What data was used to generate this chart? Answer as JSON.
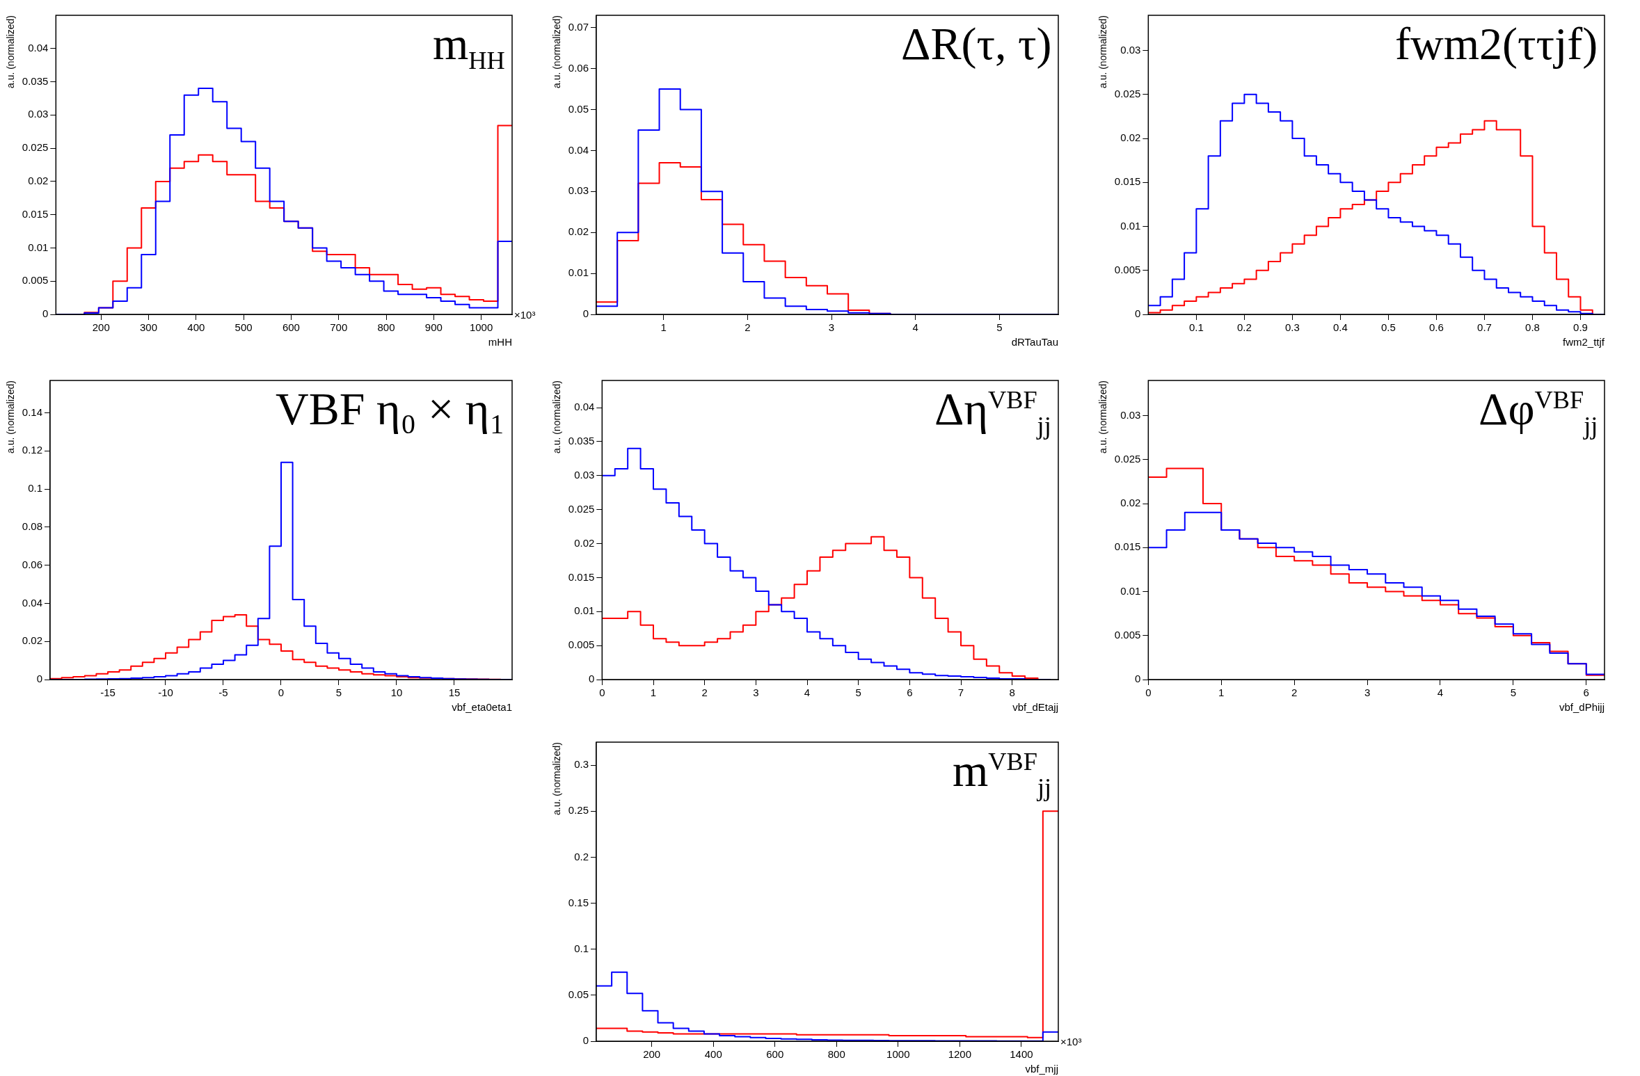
{
  "chart_data": [
    {
      "type": "histogram",
      "title": "m$_{HH}$",
      "xlabel": "mHH",
      "ylabel": "a.u. (normalized)",
      "annotations": [
        "×10³"
      ],
      "xlim": [
        105,
        1065
      ],
      "ylim": [
        0,
        0.045
      ],
      "xticks": [
        200,
        300,
        400,
        500,
        600,
        700,
        800,
        900,
        1000
      ],
      "yticks": [
        0,
        0.005,
        0.01,
        0.015,
        0.02,
        0.025,
        0.03,
        0.035,
        0.04
      ],
      "bins": [
        105,
        135,
        165,
        195,
        225,
        255,
        285,
        315,
        345,
        375,
        405,
        435,
        465,
        495,
        525,
        555,
        585,
        615,
        645,
        675,
        705,
        735,
        765,
        795,
        825,
        855,
        885,
        915,
        945,
        975,
        1005,
        1035,
        1065
      ],
      "series": [
        {
          "color": "#0000ff",
          "values": [
            0,
            0,
            0.0002,
            0.001,
            0.002,
            0.004,
            0.009,
            0.017,
            0.027,
            0.033,
            0.034,
            0.032,
            0.028,
            0.026,
            0.022,
            0.017,
            0.014,
            0.013,
            0.01,
            0.008,
            0.007,
            0.006,
            0.005,
            0.0035,
            0.003,
            0.003,
            0.0025,
            0.002,
            0.0015,
            0.001,
            0.001,
            0.011
          ]
        },
        {
          "color": "#ff0000",
          "values": [
            0,
            0,
            0.0003,
            0.001,
            0.005,
            0.01,
            0.016,
            0.02,
            0.022,
            0.023,
            0.024,
            0.023,
            0.021,
            0.021,
            0.017,
            0.016,
            0.014,
            0.013,
            0.0095,
            0.009,
            0.009,
            0.007,
            0.006,
            0.006,
            0.0045,
            0.0038,
            0.004,
            0.003,
            0.0027,
            0.0022,
            0.002,
            0.0284
          ]
        }
      ]
    },
    {
      "type": "histogram",
      "title": "ΔR(τ, τ)",
      "xlabel": "dRTauTau",
      "ylabel": "a.u. (normalized)",
      "xlim": [
        0.2,
        5.7
      ],
      "ylim": [
        0,
        0.073
      ],
      "xticks": [
        1,
        2,
        3,
        4,
        5
      ],
      "yticks": [
        0,
        0.01,
        0.02,
        0.03,
        0.04,
        0.05,
        0.06,
        0.07
      ],
      "bins": [
        0.2,
        0.45,
        0.7,
        0.95,
        1.2,
        1.45,
        1.7,
        1.95,
        2.2,
        2.45,
        2.7,
        2.95,
        3.2,
        3.45,
        3.7,
        3.95,
        4.2,
        4.45,
        4.7,
        4.95,
        5.2,
        5.45,
        5.7
      ],
      "series": [
        {
          "color": "#0000ff",
          "values": [
            0.002,
            0.02,
            0.045,
            0.055,
            0.05,
            0.03,
            0.015,
            0.008,
            0.004,
            0.002,
            0.0012,
            0.0008,
            0.0004,
            0.0002,
            0,
            0,
            0,
            0,
            0,
            0,
            0,
            0
          ]
        },
        {
          "color": "#ff0000",
          "values": [
            0.003,
            0.018,
            0.032,
            0.037,
            0.036,
            0.028,
            0.022,
            0.017,
            0.013,
            0.009,
            0.007,
            0.005,
            0.001,
            0.0002,
            0,
            0,
            0,
            0,
            0,
            0,
            0,
            0
          ]
        }
      ]
    },
    {
      "type": "histogram",
      "title": "fwm2(ττjf)",
      "xlabel": "fwm2_ttjf",
      "ylabel": "a.u. (normalized)",
      "xlim": [
        0,
        0.95
      ],
      "ylim": [
        0,
        0.034
      ],
      "xticks": [
        0.1,
        0.2,
        0.3,
        0.4,
        0.5,
        0.6,
        0.7,
        0.8,
        0.9
      ],
      "yticks": [
        0,
        0.005,
        0.01,
        0.015,
        0.02,
        0.025,
        0.03
      ],
      "bins": [
        0,
        0.025,
        0.05,
        0.075,
        0.1,
        0.125,
        0.15,
        0.175,
        0.2,
        0.225,
        0.25,
        0.275,
        0.3,
        0.325,
        0.35,
        0.375,
        0.4,
        0.425,
        0.45,
        0.475,
        0.5,
        0.525,
        0.55,
        0.575,
        0.6,
        0.625,
        0.65,
        0.675,
        0.7,
        0.725,
        0.75,
        0.775,
        0.8,
        0.825,
        0.85,
        0.875,
        0.9,
        0.925,
        0.95
      ],
      "series": [
        {
          "color": "#0000ff",
          "values": [
            0.001,
            0.002,
            0.004,
            0.007,
            0.012,
            0.018,
            0.022,
            0.024,
            0.025,
            0.024,
            0.023,
            0.022,
            0.02,
            0.018,
            0.017,
            0.016,
            0.015,
            0.014,
            0.013,
            0.012,
            0.011,
            0.0105,
            0.01,
            0.0095,
            0.009,
            0.008,
            0.0065,
            0.005,
            0.004,
            0.003,
            0.0025,
            0.002,
            0.0015,
            0.001,
            0.0005,
            0.0003,
            0.0001,
            0
          ]
        },
        {
          "color": "#ff0000",
          "values": [
            0.0002,
            0.0005,
            0.001,
            0.0015,
            0.002,
            0.0025,
            0.003,
            0.0035,
            0.004,
            0.005,
            0.006,
            0.007,
            0.008,
            0.009,
            0.01,
            0.011,
            0.012,
            0.0125,
            0.013,
            0.014,
            0.015,
            0.016,
            0.017,
            0.018,
            0.019,
            0.0195,
            0.0205,
            0.021,
            0.022,
            0.021,
            0.021,
            0.018,
            0.01,
            0.007,
            0.004,
            0.002,
            0.0005,
            0
          ]
        }
      ]
    },
    {
      "type": "histogram",
      "title": "VBF η₀ × η₁",
      "xlabel": "vbf_eta0eta1",
      "ylabel": "a.u. (normalized)",
      "xlim": [
        -20,
        20
      ],
      "ylim": [
        0,
        0.157
      ],
      "xticks": [
        -15,
        -10,
        -5,
        0,
        5,
        10,
        15
      ],
      "yticks": [
        0,
        0.02,
        0.04,
        0.06,
        0.08,
        0.1,
        0.12,
        0.14
      ],
      "bins": [
        -20,
        -19,
        -18,
        -17,
        -16,
        -15,
        -14,
        -13,
        -12,
        -11,
        -10,
        -9,
        -8,
        -7,
        -6,
        -5,
        -4,
        -3,
        -2,
        -1,
        0,
        1,
        2,
        3,
        4,
        5,
        6,
        7,
        8,
        9,
        10,
        11,
        12,
        13,
        14,
        15,
        16,
        17,
        18,
        19,
        20
      ],
      "series": [
        {
          "color": "#0000ff",
          "values": [
            0,
            0,
            0,
            0.0002,
            0.0003,
            0.0004,
            0.0005,
            0.0007,
            0.001,
            0.0015,
            0.002,
            0.003,
            0.004,
            0.006,
            0.008,
            0.01,
            0.013,
            0.018,
            0.032,
            0.07,
            0.114,
            0.042,
            0.028,
            0.019,
            0.014,
            0.011,
            0.008,
            0.006,
            0.004,
            0.003,
            0.002,
            0.0015,
            0.001,
            0.0007,
            0.0005,
            0.0003,
            0.0002,
            0.0001,
            0,
            0
          ]
        },
        {
          "color": "#ff0000",
          "values": [
            0.0005,
            0.001,
            0.0015,
            0.002,
            0.003,
            0.004,
            0.005,
            0.007,
            0.009,
            0.011,
            0.014,
            0.017,
            0.021,
            0.025,
            0.031,
            0.033,
            0.034,
            0.028,
            0.021,
            0.0185,
            0.015,
            0.0105,
            0.009,
            0.007,
            0.006,
            0.005,
            0.004,
            0.003,
            0.0025,
            0.002,
            0.0015,
            0.001,
            0.0008,
            0.0006,
            0.0005,
            0.0004,
            0.0003,
            0.0002,
            0.0001,
            0
          ]
        }
      ]
    },
    {
      "type": "histogram",
      "title": "Δη$^{VBF}$$_{jj}$",
      "xlabel": "vbf_dEtajj",
      "ylabel": "a.u. (normalized)",
      "xlim": [
        0,
        8.9
      ],
      "ylim": [
        0,
        0.044
      ],
      "xticks": [
        0,
        1,
        2,
        3,
        4,
        5,
        6,
        7,
        8
      ],
      "yticks": [
        0,
        0.005,
        0.01,
        0.015,
        0.02,
        0.025,
        0.03,
        0.035,
        0.04
      ],
      "bins": [
        0,
        0.25,
        0.5,
        0.75,
        1,
        1.25,
        1.5,
        1.75,
        2,
        2.25,
        2.5,
        2.75,
        3,
        3.25,
        3.5,
        3.75,
        4,
        4.25,
        4.5,
        4.75,
        5,
        5.25,
        5.5,
        5.75,
        6,
        6.25,
        6.5,
        6.75,
        7,
        7.25,
        7.5,
        7.75,
        8,
        8.25,
        8.5,
        8.75
      ],
      "series": [
        {
          "color": "#0000ff",
          "values": [
            0.03,
            0.031,
            0.034,
            0.031,
            0.028,
            0.026,
            0.024,
            0.022,
            0.02,
            0.018,
            0.016,
            0.015,
            0.013,
            0.011,
            0.01,
            0.009,
            0.007,
            0.006,
            0.005,
            0.004,
            0.003,
            0.0025,
            0.002,
            0.0015,
            0.001,
            0.0008,
            0.0006,
            0.0005,
            0.0004,
            0.0003,
            0.0002,
            0.0001,
            0.0001,
            0,
            0
          ]
        },
        {
          "color": "#ff0000",
          "values": [
            0.009,
            0.009,
            0.01,
            0.008,
            0.006,
            0.0055,
            0.005,
            0.005,
            0.0055,
            0.006,
            0.007,
            0.008,
            0.01,
            0.011,
            0.012,
            0.014,
            0.016,
            0.018,
            0.019,
            0.02,
            0.02,
            0.021,
            0.019,
            0.018,
            0.015,
            0.012,
            0.009,
            0.007,
            0.005,
            0.003,
            0.002,
            0.001,
            0.0005,
            0.0002,
            0
          ]
        }
      ]
    },
    {
      "type": "histogram",
      "title": "Δφ$^{VBF}$$_{jj}$",
      "xlabel": "vbf_dPhijj",
      "ylabel": "a.u. (normalized)",
      "xlim": [
        0,
        6.25
      ],
      "ylim": [
        0,
        0.034
      ],
      "xticks": [
        0,
        1,
        2,
        3,
        4,
        5,
        6
      ],
      "yticks": [
        0,
        0.005,
        0.01,
        0.015,
        0.02,
        0.025,
        0.03
      ],
      "bins": [
        0,
        0.25,
        0.5,
        0.75,
        1,
        1.25,
        1.5,
        1.75,
        2,
        2.25,
        2.5,
        2.75,
        3,
        3.25,
        3.5,
        3.75,
        4,
        4.25,
        4.5,
        4.75,
        5,
        5.25,
        5.5,
        5.75,
        6,
        6.25
      ],
      "series": [
        {
          "color": "#0000ff",
          "values": [
            0.015,
            0.017,
            0.019,
            0.019,
            0.017,
            0.016,
            0.0155,
            0.015,
            0.0145,
            0.014,
            0.013,
            0.0125,
            0.012,
            0.011,
            0.0105,
            0.0095,
            0.009,
            0.008,
            0.0072,
            0.0063,
            0.0052,
            0.004,
            0.003,
            0.0018,
            0.0006
          ]
        },
        {
          "color": "#ff0000",
          "values": [
            0.023,
            0.024,
            0.024,
            0.02,
            0.017,
            0.016,
            0.015,
            0.014,
            0.0135,
            0.013,
            0.012,
            0.011,
            0.0105,
            0.01,
            0.0095,
            0.009,
            0.0085,
            0.0075,
            0.007,
            0.006,
            0.005,
            0.0042,
            0.0032,
            0.0018,
            0.0005
          ]
        }
      ]
    },
    {
      "type": "histogram",
      "title": "m$^{VBF}$$_{jj}$",
      "xlabel": "vbf_mjj",
      "ylabel": "a.u. (normalized)",
      "annotations": [
        "×10³"
      ],
      "xlim": [
        20,
        1520
      ],
      "ylim": [
        0,
        0.325
      ],
      "xticks": [
        200,
        400,
        600,
        800,
        1000,
        1200,
        1400
      ],
      "yticks": [
        0,
        0.05,
        0.1,
        0.15,
        0.2,
        0.25,
        0.3
      ],
      "bins": [
        20,
        70,
        120,
        170,
        220,
        270,
        320,
        370,
        420,
        470,
        520,
        570,
        620,
        670,
        720,
        770,
        820,
        870,
        920,
        970,
        1020,
        1070,
        1120,
        1170,
        1220,
        1270,
        1320,
        1370,
        1420,
        1470,
        1520
      ],
      "series": [
        {
          "color": "#0000ff",
          "values": [
            0.06,
            0.075,
            0.052,
            0.033,
            0.02,
            0.014,
            0.011,
            0.008,
            0.006,
            0.005,
            0.004,
            0.003,
            0.0025,
            0.002,
            0.0015,
            0.0012,
            0.001,
            0.0009,
            0.0008,
            0.0006,
            0.0005,
            0.0005,
            0.0004,
            0.0004,
            0.0003,
            0.0003,
            0.0002,
            0.0002,
            0.0002,
            0.01
          ]
        },
        {
          "color": "#ff0000",
          "values": [
            0.014,
            0.014,
            0.011,
            0.01,
            0.009,
            0.008,
            0.008,
            0.008,
            0.008,
            0.008,
            0.008,
            0.008,
            0.008,
            0.007,
            0.007,
            0.007,
            0.007,
            0.007,
            0.007,
            0.006,
            0.006,
            0.006,
            0.006,
            0.006,
            0.005,
            0.005,
            0.005,
            0.005,
            0.004,
            0.25
          ]
        }
      ]
    }
  ]
}
